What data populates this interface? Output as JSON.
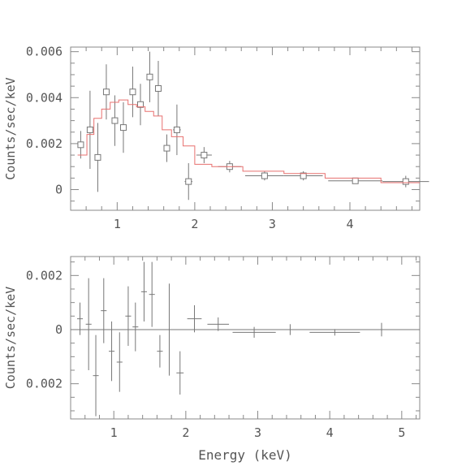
{
  "colors": {
    "model": "#e8706f",
    "data": "#777777",
    "axes": "#888888",
    "text": "#555555"
  },
  "chart_data": [
    {
      "type": "scatter",
      "title": "",
      "xlabel": "",
      "ylabel": "Counts/sec/keV",
      "xlim": [
        0.4,
        4.9
      ],
      "ylim": [
        -0.0009,
        0.0062
      ],
      "xticks": [
        1,
        2,
        3,
        4
      ],
      "xtick_labels": [
        "1",
        "2",
        "3",
        "4"
      ],
      "yticks": [
        0,
        0.002,
        0.004,
        0.006
      ],
      "ytick_labels": [
        "0",
        "0.002",
        "0.004",
        "0.006"
      ],
      "grid": false,
      "series": [
        {
          "kind": "data",
          "points": [
            {
              "x": 0.53,
              "y": 0.00195,
              "xerr": 0.04,
              "yerr": 0.0006
            },
            {
              "x": 0.65,
              "y": 0.0026,
              "xerr": 0.04,
              "yerr": 0.0017
            },
            {
              "x": 0.75,
              "y": 0.0014,
              "xerr": 0.04,
              "yerr": 0.0015
            },
            {
              "x": 0.86,
              "y": 0.00425,
              "xerr": 0.04,
              "yerr": 0.0012
            },
            {
              "x": 0.97,
              "y": 0.003,
              "xerr": 0.04,
              "yerr": 0.0011
            },
            {
              "x": 1.08,
              "y": 0.0027,
              "xerr": 0.04,
              "yerr": 0.0011
            },
            {
              "x": 1.2,
              "y": 0.00425,
              "xerr": 0.04,
              "yerr": 0.0011
            },
            {
              "x": 1.3,
              "y": 0.0037,
              "xerr": 0.04,
              "yerr": 0.0009
            },
            {
              "x": 1.42,
              "y": 0.0049,
              "xerr": 0.04,
              "yerr": 0.0011
            },
            {
              "x": 1.53,
              "y": 0.0044,
              "xerr": 0.04,
              "yerr": 0.0012
            },
            {
              "x": 1.64,
              "y": 0.0018,
              "xerr": 0.04,
              "yerr": 0.0006
            },
            {
              "x": 1.77,
              "y": 0.0026,
              "xerr": 0.05,
              "yerr": 0.0011
            },
            {
              "x": 1.92,
              "y": 0.00035,
              "xerr": 0.05,
              "yerr": 0.0008
            },
            {
              "x": 2.12,
              "y": 0.0015,
              "xerr": 0.1,
              "yerr": 0.00035
            },
            {
              "x": 2.45,
              "y": 0.001,
              "xerr": 0.15,
              "yerr": 0.00025
            },
            {
              "x": 2.9,
              "y": 0.0006,
              "xerr": 0.25,
              "yerr": 0.0002
            },
            {
              "x": 3.4,
              "y": 0.0006,
              "xerr": 0.25,
              "yerr": 0.0002
            },
            {
              "x": 4.07,
              "y": 0.00038,
              "xerr": 0.35,
              "yerr": 0.0001
            },
            {
              "x": 4.72,
              "y": 0.00035,
              "xerr": 0.3,
              "yerr": 0.00025
            }
          ]
        },
        {
          "kind": "model",
          "step": [
            {
              "x0": 0.49,
              "x1": 0.61,
              "y": 0.0015
            },
            {
              "x0": 0.61,
              "x1": 0.7,
              "y": 0.0024
            },
            {
              "x0": 0.7,
              "x1": 0.8,
              "y": 0.0031
            },
            {
              "x0": 0.8,
              "x1": 0.91,
              "y": 0.0035
            },
            {
              "x0": 0.91,
              "x1": 1.02,
              "y": 0.0038
            },
            {
              "x0": 1.02,
              "x1": 1.14,
              "y": 0.0039
            },
            {
              "x0": 1.14,
              "x1": 1.25,
              "y": 0.0037
            },
            {
              "x0": 1.25,
              "x1": 1.36,
              "y": 0.0036
            },
            {
              "x0": 1.36,
              "x1": 1.47,
              "y": 0.0034
            },
            {
              "x0": 1.47,
              "x1": 1.58,
              "y": 0.0032
            },
            {
              "x0": 1.58,
              "x1": 1.7,
              "y": 0.0026
            },
            {
              "x0": 1.7,
              "x1": 1.85,
              "y": 0.0023
            },
            {
              "x0": 1.85,
              "x1": 2.0,
              "y": 0.0019
            },
            {
              "x0": 2.0,
              "x1": 2.22,
              "y": 0.0011
            },
            {
              "x0": 2.22,
              "x1": 2.62,
              "y": 0.001
            },
            {
              "x0": 2.62,
              "x1": 3.15,
              "y": 0.0008
            },
            {
              "x0": 3.15,
              "x1": 3.68,
              "y": 0.0007
            },
            {
              "x0": 3.68,
              "x1": 4.4,
              "y": 0.0005
            },
            {
              "x0": 4.4,
              "x1": 4.9,
              "y": 0.0003
            }
          ]
        }
      ]
    },
    {
      "type": "scatter",
      "title": "",
      "xlabel": "Energy (keV)",
      "ylabel": "Counts/sec/keV",
      "xlim": [
        0.4,
        5.25
      ],
      "ylim": [
        -0.0033,
        0.0027
      ],
      "xticks": [
        1,
        2,
        3,
        4,
        5
      ],
      "xtick_labels": [
        "1",
        "2",
        "3",
        "4",
        "5"
      ],
      "yticks": [
        0.002,
        0,
        -0.002
      ],
      "ytick_labels": [
        "0.002",
        "0",
        "0.002"
      ],
      "grid": false,
      "zero_line": true,
      "series": [
        {
          "kind": "residuals",
          "points": [
            {
              "x": 0.53,
              "y": 0.0004,
              "xerr": 0.04,
              "yerr": 0.0006
            },
            {
              "x": 0.65,
              "y": 0.0002,
              "xerr": 0.04,
              "yerr": 0.0017
            },
            {
              "x": 0.75,
              "y": -0.0017,
              "xerr": 0.04,
              "yerr": 0.0015
            },
            {
              "x": 0.86,
              "y": 0.0007,
              "xerr": 0.04,
              "yerr": 0.0012
            },
            {
              "x": 0.97,
              "y": -0.0008,
              "xerr": 0.04,
              "yerr": 0.0011
            },
            {
              "x": 1.08,
              "y": -0.0012,
              "xerr": 0.04,
              "yerr": 0.0011
            },
            {
              "x": 1.2,
              "y": 0.0005,
              "xerr": 0.04,
              "yerr": 0.0011
            },
            {
              "x": 1.3,
              "y": 0.0001,
              "xerr": 0.04,
              "yerr": 0.0009
            },
            {
              "x": 1.42,
              "y": 0.0014,
              "xerr": 0.04,
              "yerr": 0.0011
            },
            {
              "x": 1.53,
              "y": 0.0013,
              "xerr": 0.04,
              "yerr": 0.0012
            },
            {
              "x": 1.64,
              "y": -0.0008,
              "xerr": 0.04,
              "yerr": 0.0006
            },
            {
              "x": 1.77,
              "y": 0.0,
              "xerr": 0.05,
              "yerr": 0.0017
            },
            {
              "x": 1.92,
              "y": -0.0016,
              "xerr": 0.05,
              "yerr": 0.0008
            },
            {
              "x": 2.12,
              "y": 0.0004,
              "xerr": 0.1,
              "yerr": 0.0005
            },
            {
              "x": 2.45,
              "y": 0.0002,
              "xerr": 0.15,
              "yerr": 0.00025
            },
            {
              "x": 2.95,
              "y": -0.0001,
              "xerr": 0.3,
              "yerr": 0.0002
            },
            {
              "x": 3.45,
              "y": 0.0,
              "xerr": 0.3,
              "yerr": 0.0002
            },
            {
              "x": 4.07,
              "y": -0.0001,
              "xerr": 0.35,
              "yerr": 0.00012
            },
            {
              "x": 4.72,
              "y": 0.0,
              "xerr": 0.3,
              "yerr": 0.00025
            }
          ]
        }
      ]
    }
  ]
}
